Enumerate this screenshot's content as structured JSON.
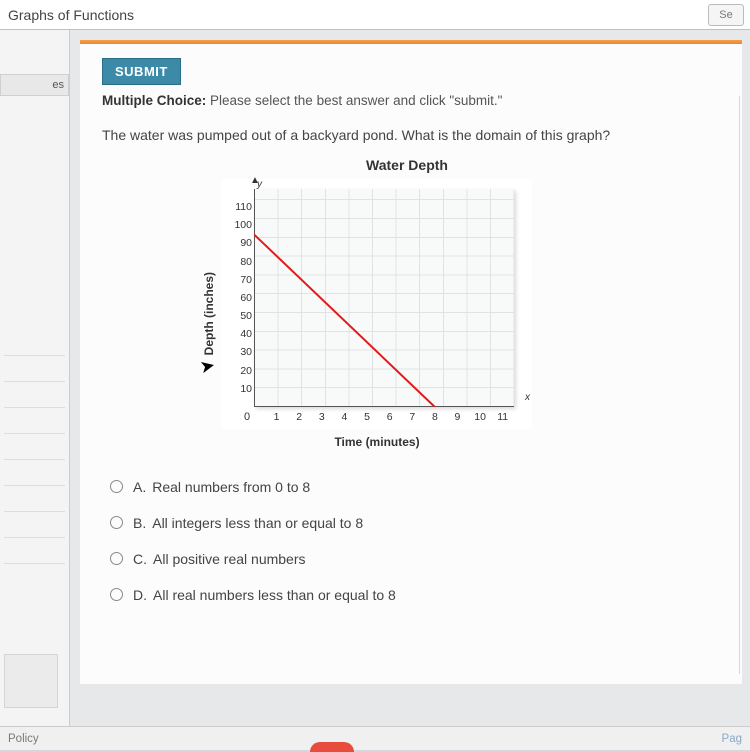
{
  "header": {
    "title": "Graphs of Functions",
    "search_btn": "Se"
  },
  "sidebar": {
    "tab_label": "es"
  },
  "card": {
    "submit_label": "SUBMIT",
    "instruction_bold": "Multiple Choice:",
    "instruction_rest": " Please select the best answer and click \"submit.\"",
    "question": "The water was pumped out of a backyard pond. What is the domain of this graph?"
  },
  "chart": {
    "title": "Water Depth",
    "ylabel": "Depth (inches)",
    "xlabel": "Time (minutes)",
    "y_axis_letter": "y",
    "x_axis_letter": "x",
    "y_ticks": [
      10,
      20,
      30,
      40,
      50,
      60,
      70,
      80,
      90,
      100,
      110
    ],
    "x_ticks": [
      1,
      2,
      3,
      4,
      5,
      6,
      7,
      8,
      9,
      10,
      11
    ],
    "y_max": 120,
    "x_max": 11.5,
    "line_start": {
      "x": 0,
      "y": 95
    },
    "line_end": {
      "x": 8,
      "y": 0
    },
    "line_color": "#e21a1a",
    "grid_color": "#e2e2e2",
    "axis_color": "#555",
    "bg": "#f8faf9"
  },
  "choices": [
    {
      "letter": "A.",
      "text": "Real numbers from 0 to 8"
    },
    {
      "letter": "B.",
      "text": "All integers less than or equal to 8"
    },
    {
      "letter": "C.",
      "text": "All positive real numbers"
    },
    {
      "letter": "D.",
      "text": "All real numbers less than or equal to 8"
    }
  ],
  "footer": {
    "left": "Policy",
    "right": "Pag"
  }
}
